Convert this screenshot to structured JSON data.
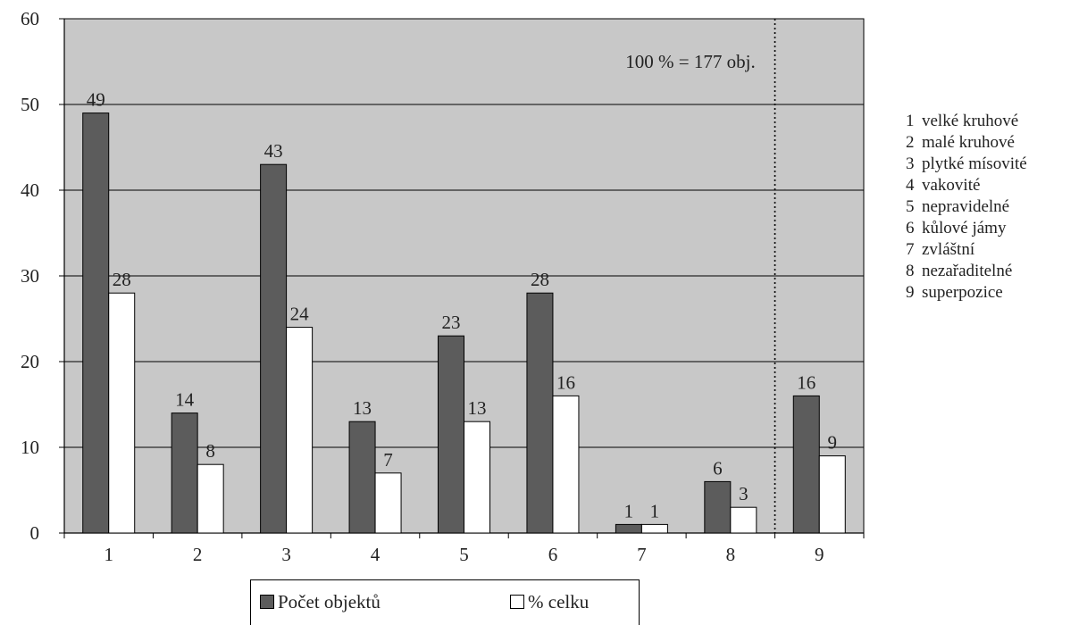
{
  "chart_data": {
    "type": "bar",
    "categories": [
      "1",
      "2",
      "3",
      "4",
      "5",
      "6",
      "7",
      "8",
      "9"
    ],
    "series": [
      {
        "name": "Počet objektů",
        "values": [
          49,
          14,
          43,
          13,
          23,
          28,
          1,
          6,
          16
        ],
        "color": "#5c5c5c"
      },
      {
        "name": "% celku",
        "values": [
          28,
          8,
          24,
          7,
          13,
          16,
          1,
          3,
          9
        ],
        "color": "#ffffff"
      }
    ],
    "y_ticks": [
      "0",
      "10",
      "20",
      "30",
      "40",
      "50",
      "60"
    ],
    "ylim": [
      0,
      60
    ],
    "grid": true,
    "legend_position": "bottom",
    "plot_background": "#c8c8c8",
    "annotation": "100 % = 177 obj.",
    "separator_after_category": "8",
    "title": "",
    "xlabel": "",
    "ylabel": ""
  },
  "category_legend": [
    {
      "num": "1",
      "label": "velké kruhové"
    },
    {
      "num": "2",
      "label": "malé kruhové"
    },
    {
      "num": "3",
      "label": "plytké mísovité"
    },
    {
      "num": "4",
      "label": "vakovité"
    },
    {
      "num": "5",
      "label": "nepravidelné"
    },
    {
      "num": "6",
      "label": "kůlové jámy"
    },
    {
      "num": "7",
      "label": "zvláštní"
    },
    {
      "num": "8",
      "label": "nezařaditelné"
    },
    {
      "num": "9",
      "label": "superpozice"
    }
  ]
}
